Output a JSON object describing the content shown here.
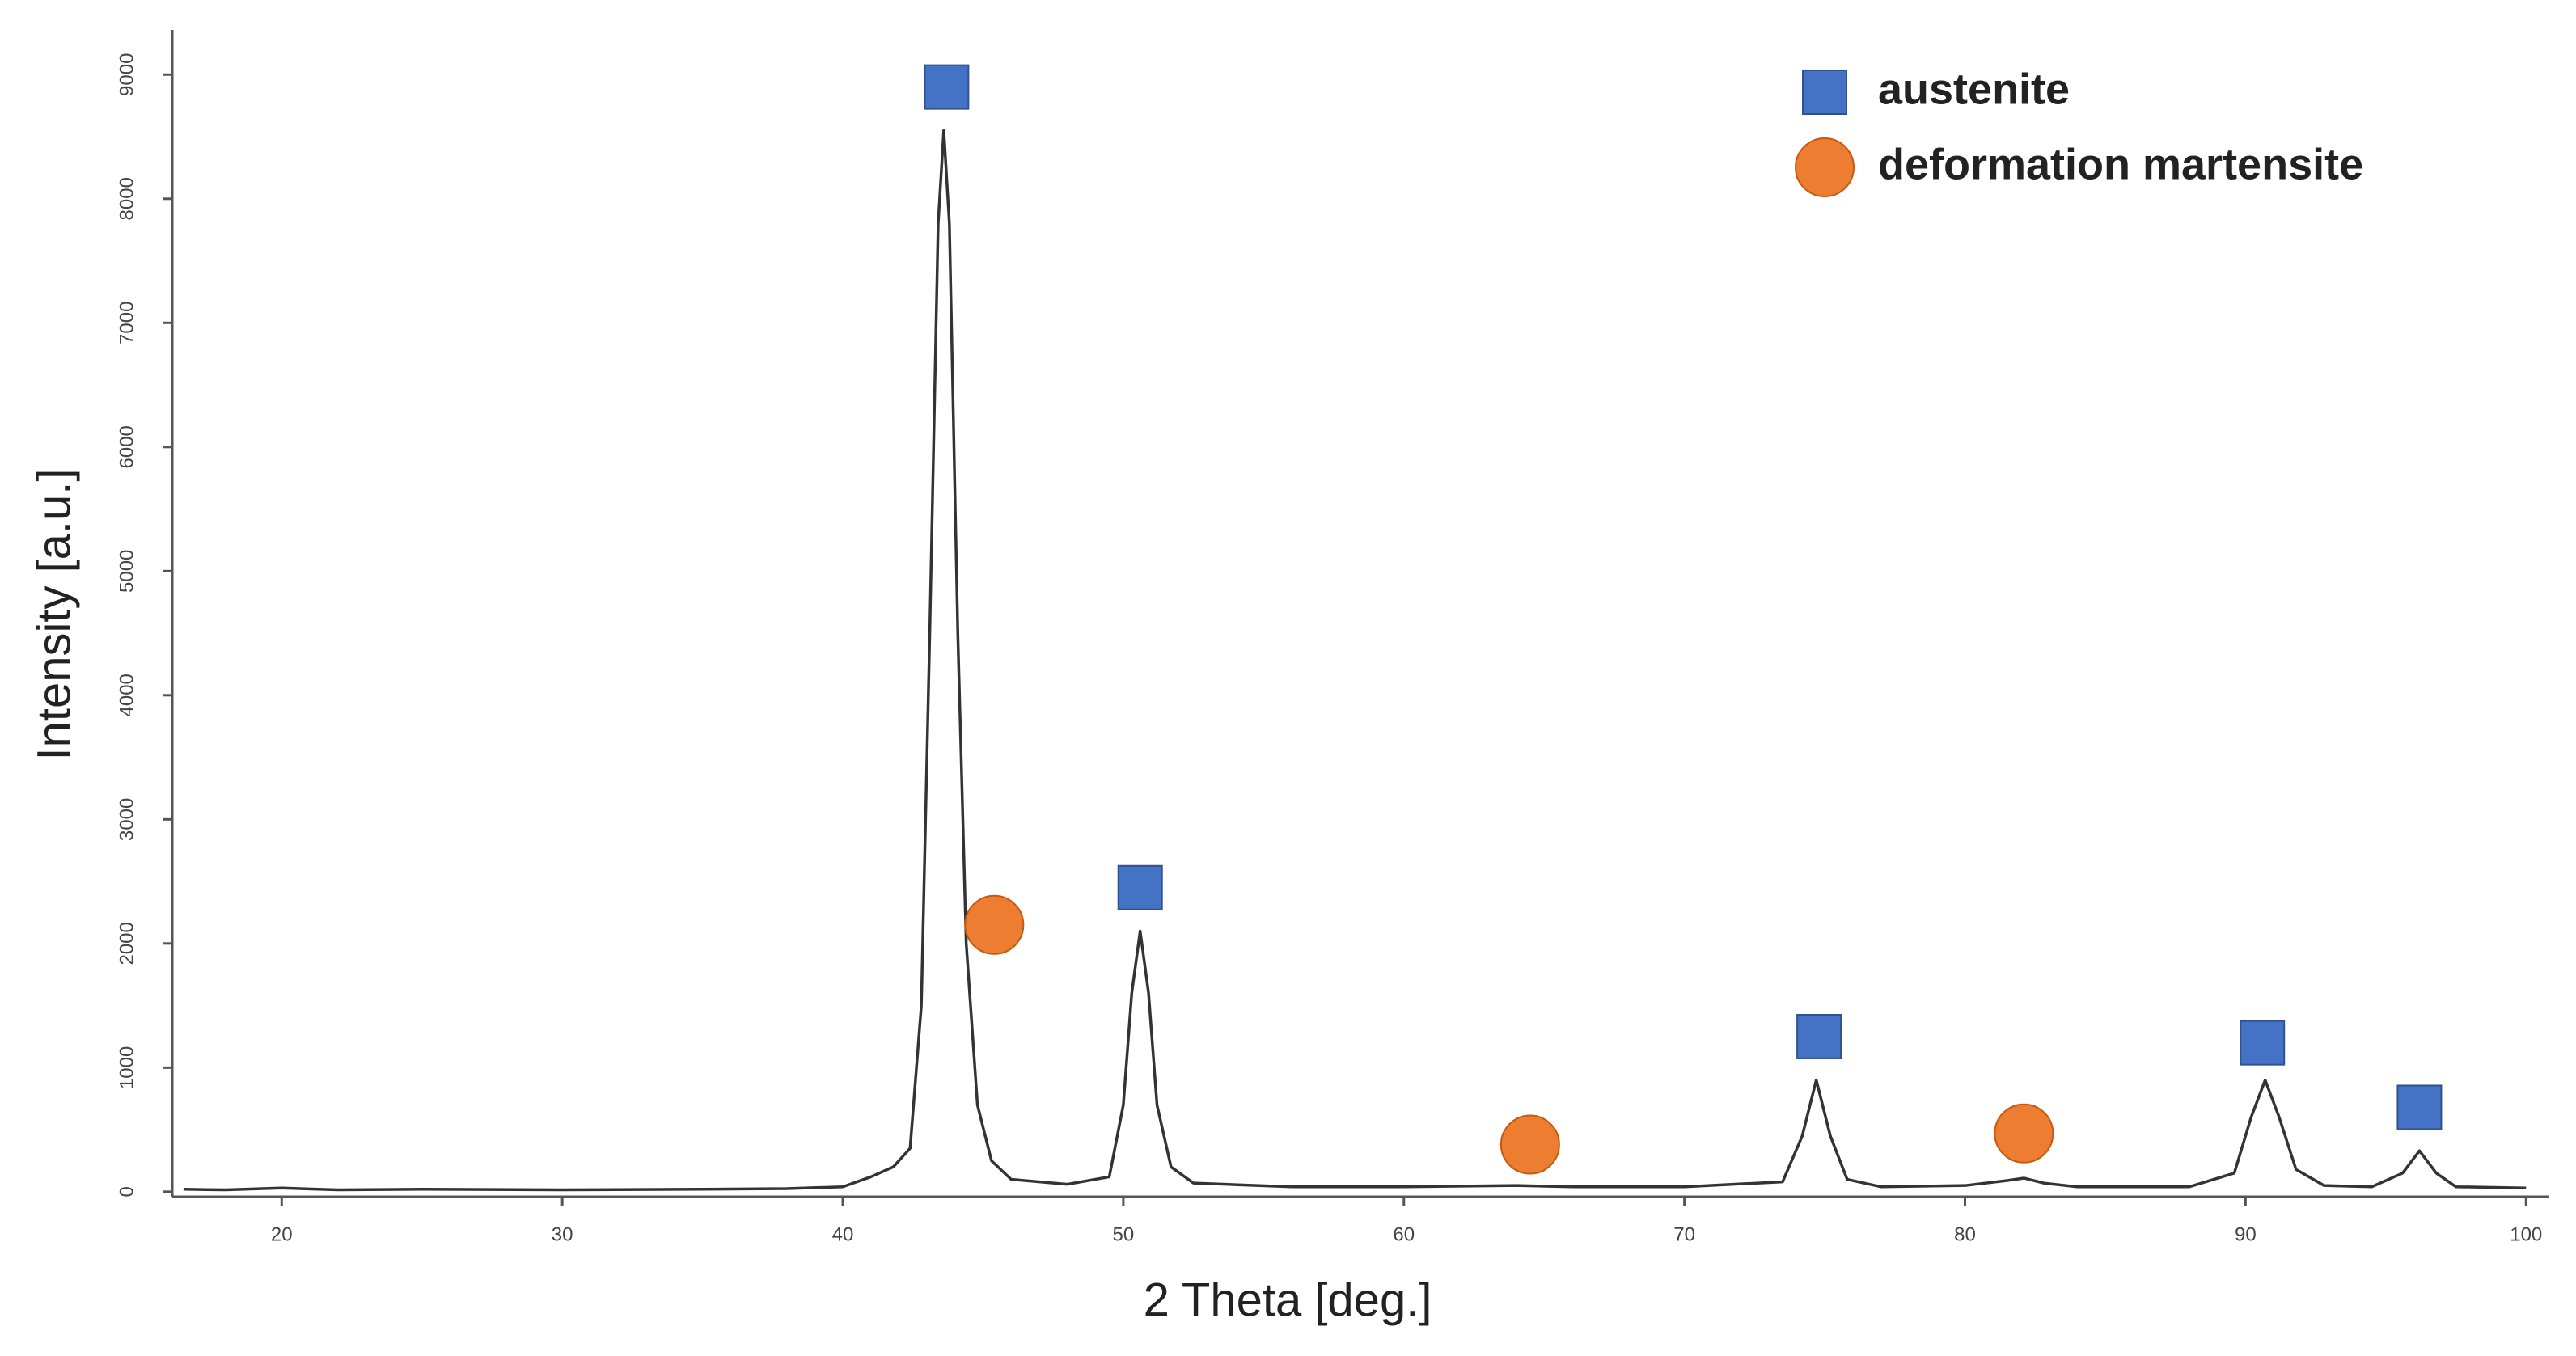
{
  "chart_data": {
    "type": "line",
    "x_label": "2 Theta [deg.]",
    "y_label": "Intensity [a.u.]",
    "xlim": [
      16.1,
      100.8
    ],
    "ylim": [
      -40,
      9360
    ],
    "xticks": [
      20,
      30,
      40,
      50,
      60,
      70,
      80,
      90,
      100
    ],
    "yticks": [
      0,
      1000,
      2000,
      3000,
      4000,
      5000,
      6000,
      7000,
      8000,
      9000
    ],
    "x": [
      16.5,
      18,
      20,
      22,
      25,
      30,
      35,
      38,
      40,
      41,
      41.8,
      42.4,
      42.8,
      43.1,
      43.4,
      43.6,
      43.8,
      44.1,
      44.4,
      44.8,
      45.3,
      46,
      48,
      49.5,
      50,
      50.3,
      50.6,
      50.9,
      51.2,
      51.7,
      52.5,
      56,
      60,
      64,
      66,
      70,
      73.5,
      74.2,
      74.7,
      75.2,
      75.8,
      77,
      80,
      81.5,
      82.1,
      82.8,
      84,
      88,
      89.6,
      90.2,
      90.7,
      91.2,
      91.8,
      92.8,
      94.5,
      95.6,
      96.2,
      96.8,
      97.5,
      100
    ],
    "series": [
      {
        "color": "#333333",
        "values": [
          20,
          15,
          30,
          15,
          20,
          15,
          20,
          25,
          40,
          120,
          200,
          350,
          1500,
          4500,
          7800,
          8550,
          7800,
          4500,
          2000,
          700,
          250,
          100,
          60,
          120,
          700,
          1600,
          2100,
          1600,
          700,
          200,
          70,
          40,
          40,
          50,
          40,
          40,
          80,
          450,
          900,
          450,
          100,
          40,
          50,
          90,
          110,
          70,
          40,
          40,
          150,
          600,
          900,
          600,
          180,
          50,
          40,
          150,
          330,
          150,
          40,
          30
        ]
      }
    ],
    "markers": [
      {
        "name": "austenite",
        "shape": "square",
        "color": "#4472c4",
        "x": [
          43.7,
          50.6,
          74.8,
          90.6,
          96.2
        ],
        "values": [
          8900,
          2450,
          1250,
          1200,
          680
        ]
      },
      {
        "name": "deformation martensite",
        "shape": "circle",
        "color": "#ed7d31",
        "x": [
          45.4,
          64.5,
          82.1
        ],
        "values": [
          2150,
          380,
          470
        ]
      }
    ]
  }
}
